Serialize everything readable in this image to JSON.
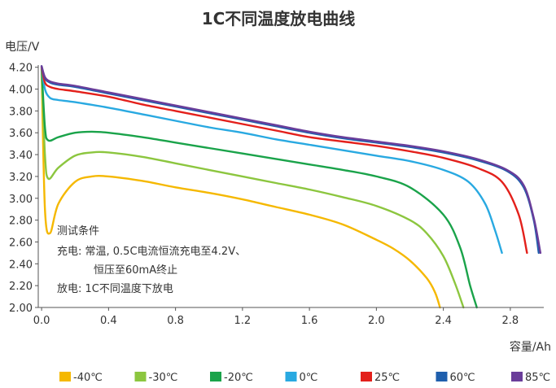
{
  "chart_data": {
    "type": "line",
    "title": "1C不同温度放电曲线",
    "ylabel": "电压/V",
    "xlabel": "容量/Ah",
    "xlim": [
      -0.02,
      3.0
    ],
    "ylim": [
      2.0,
      4.22
    ],
    "x_ticks": [
      "0.0",
      "0.4",
      "0.8",
      "1.2",
      "1.6",
      "2.0",
      "2.4",
      "2.8"
    ],
    "y_ticks": [
      "2.00",
      "2.20",
      "2.40",
      "2.60",
      "2.80",
      "3.00",
      "3.20",
      "3.40",
      "3.60",
      "3.80",
      "4.00",
      "4.20"
    ],
    "grid": false,
    "legend_position": "bottom",
    "annotation": [
      "测试条件",
      "充电: 常温, 0.5C电流恒流充电至4.2V、",
      "恒压至60mA终止",
      "放电: 1C不同温度下放电"
    ],
    "series": [
      {
        "name": "-40℃",
        "color": "#f5b800",
        "x": [
          0.0,
          0.02,
          0.05,
          0.1,
          0.2,
          0.3,
          0.4,
          0.6,
          0.8,
          1.0,
          1.2,
          1.4,
          1.6,
          1.8,
          2.0,
          2.1,
          2.2,
          2.3,
          2.35,
          2.38
        ],
        "y": [
          4.18,
          2.9,
          2.68,
          2.95,
          3.15,
          3.2,
          3.2,
          3.16,
          3.1,
          3.05,
          2.99,
          2.92,
          2.85,
          2.76,
          2.62,
          2.54,
          2.43,
          2.27,
          2.14,
          2.0
        ]
      },
      {
        "name": "-30℃",
        "color": "#8cc63f",
        "x": [
          0.0,
          0.02,
          0.04,
          0.1,
          0.2,
          0.3,
          0.4,
          0.6,
          0.8,
          1.0,
          1.2,
          1.4,
          1.6,
          1.8,
          2.0,
          2.2,
          2.3,
          2.4,
          2.47,
          2.52
        ],
        "y": [
          4.19,
          3.4,
          3.18,
          3.28,
          3.39,
          3.42,
          3.42,
          3.38,
          3.32,
          3.26,
          3.2,
          3.14,
          3.08,
          3.01,
          2.93,
          2.8,
          2.68,
          2.47,
          2.22,
          2.0
        ]
      },
      {
        "name": "-20℃",
        "color": "#1aa34a",
        "x": [
          0.0,
          0.02,
          0.04,
          0.1,
          0.2,
          0.3,
          0.4,
          0.6,
          0.8,
          1.0,
          1.2,
          1.4,
          1.6,
          1.8,
          2.0,
          2.2,
          2.4,
          2.5,
          2.56,
          2.6
        ],
        "y": [
          4.2,
          3.65,
          3.53,
          3.56,
          3.6,
          3.61,
          3.6,
          3.56,
          3.51,
          3.46,
          3.41,
          3.36,
          3.31,
          3.26,
          3.2,
          3.1,
          2.85,
          2.55,
          2.2,
          2.0
        ]
      },
      {
        "name": "0℃",
        "color": "#29a9e1",
        "x": [
          0.0,
          0.02,
          0.05,
          0.1,
          0.2,
          0.4,
          0.6,
          0.8,
          1.0,
          1.2,
          1.4,
          1.6,
          1.8,
          2.0,
          2.2,
          2.4,
          2.55,
          2.65,
          2.71,
          2.75
        ],
        "y": [
          4.2,
          4.0,
          3.92,
          3.9,
          3.88,
          3.83,
          3.77,
          3.71,
          3.65,
          3.6,
          3.54,
          3.49,
          3.44,
          3.39,
          3.34,
          3.26,
          3.15,
          2.95,
          2.7,
          2.5
        ]
      },
      {
        "name": "25℃",
        "color": "#e3201b",
        "x": [
          0.0,
          0.02,
          0.05,
          0.1,
          0.2,
          0.4,
          0.6,
          0.8,
          1.0,
          1.2,
          1.4,
          1.6,
          1.8,
          2.0,
          2.2,
          2.4,
          2.6,
          2.75,
          2.85,
          2.9
        ],
        "y": [
          4.2,
          4.06,
          4.02,
          4.0,
          3.98,
          3.93,
          3.86,
          3.8,
          3.74,
          3.68,
          3.62,
          3.56,
          3.52,
          3.48,
          3.43,
          3.37,
          3.28,
          3.15,
          2.85,
          2.5
        ]
      },
      {
        "name": "60℃",
        "color": "#1f5fad",
        "x": [
          0.0,
          0.02,
          0.05,
          0.1,
          0.2,
          0.4,
          0.6,
          0.8,
          1.0,
          1.2,
          1.4,
          1.6,
          1.8,
          2.0,
          2.2,
          2.4,
          2.6,
          2.78,
          2.88,
          2.94,
          2.97
        ],
        "y": [
          4.21,
          4.1,
          4.06,
          4.04,
          4.02,
          3.96,
          3.9,
          3.84,
          3.78,
          3.72,
          3.66,
          3.6,
          3.55,
          3.51,
          3.47,
          3.42,
          3.35,
          3.25,
          3.1,
          2.8,
          2.5
        ]
      },
      {
        "name": "85℃",
        "color": "#6a3d9a",
        "x": [
          0.0,
          0.02,
          0.05,
          0.1,
          0.2,
          0.4,
          0.6,
          0.8,
          1.0,
          1.2,
          1.4,
          1.6,
          1.8,
          2.0,
          2.2,
          2.4,
          2.6,
          2.78,
          2.88,
          2.94,
          2.98
        ],
        "y": [
          4.21,
          4.11,
          4.07,
          4.05,
          4.03,
          3.97,
          3.91,
          3.85,
          3.79,
          3.73,
          3.67,
          3.61,
          3.56,
          3.52,
          3.48,
          3.43,
          3.36,
          3.26,
          3.12,
          2.82,
          2.5
        ]
      }
    ]
  }
}
